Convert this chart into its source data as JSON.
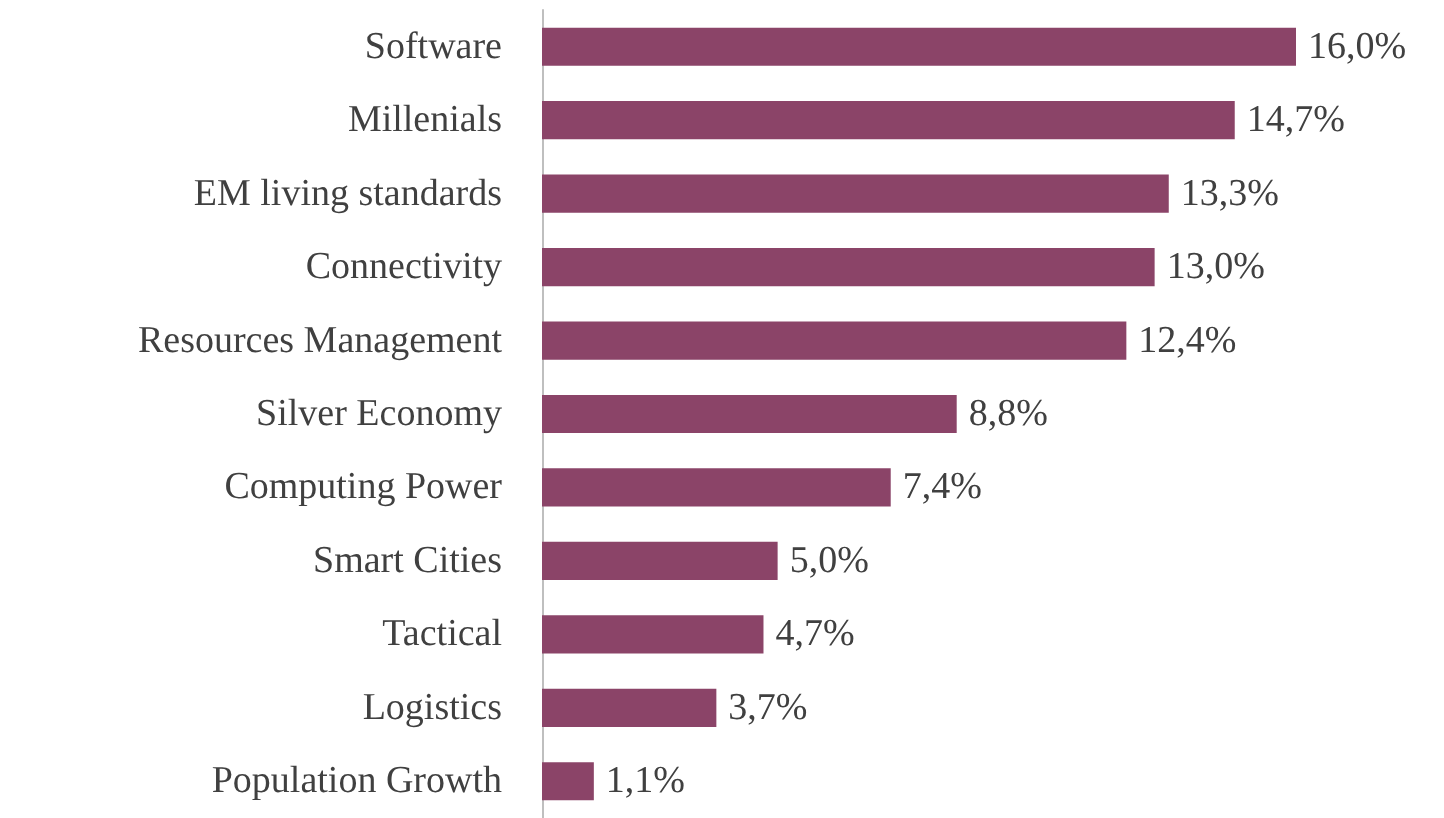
{
  "chart_data": {
    "type": "bar",
    "orientation": "horizontal",
    "categories": [
      "Software",
      "Millenials",
      "EM living standards",
      "Connectivity",
      "Resources Management",
      "Silver Economy",
      "Computing Power",
      "Smart Cities",
      "Tactical",
      "Logistics",
      "Population Growth"
    ],
    "values": [
      16.0,
      14.7,
      13.3,
      13.0,
      12.4,
      8.8,
      7.4,
      5.0,
      4.7,
      3.7,
      1.1
    ],
    "value_labels": [
      "16,0%",
      "14,7%",
      "13,3%",
      "13,0%",
      "12,4%",
      "8,8%",
      "7,4%",
      "5,0%",
      "4,7%",
      "3,7%",
      "1,1%"
    ],
    "color": "#8b4468"
  }
}
